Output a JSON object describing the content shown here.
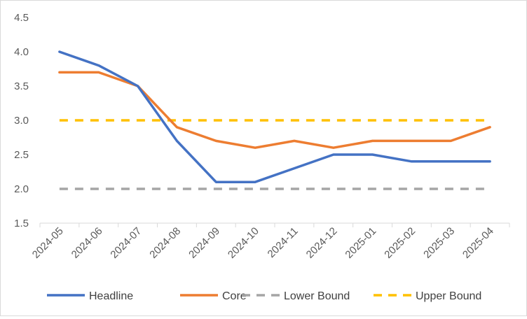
{
  "chart_data": {
    "type": "line",
    "title": "",
    "xlabel": "",
    "ylabel": "",
    "ylim": [
      1.5,
      4.5
    ],
    "ytick_step": 0.5,
    "grid": false,
    "legend_position": "bottom",
    "categories": [
      "2024-05",
      "2024-06",
      "2024-07",
      "2024-08",
      "2024-09",
      "2024-10",
      "2024-11",
      "2024-12",
      "2025-01",
      "2025-02",
      "2025-03",
      "2025-04"
    ],
    "series": [
      {
        "name": "Headline",
        "color": "#4472C4",
        "style": "solid",
        "values": [
          4.0,
          3.8,
          3.5,
          2.7,
          2.1,
          2.1,
          2.3,
          2.5,
          2.5,
          2.4,
          2.4,
          2.4
        ]
      },
      {
        "name": "Core",
        "color": "#ED7D31",
        "style": "solid",
        "values": [
          3.7,
          3.7,
          3.5,
          2.9,
          2.7,
          2.6,
          2.7,
          2.6,
          2.7,
          2.7,
          2.7,
          2.9
        ]
      },
      {
        "name": "Lower Bound",
        "color": "#A5A5A5",
        "style": "dashed",
        "values": [
          2.0,
          2.0,
          2.0,
          2.0,
          2.0,
          2.0,
          2.0,
          2.0,
          2.0,
          2.0,
          2.0,
          2.0
        ]
      },
      {
        "name": "Upper Bound",
        "color": "#FFC000",
        "style": "dashed",
        "values": [
          3.0,
          3.0,
          3.0,
          3.0,
          3.0,
          3.0,
          3.0,
          3.0,
          3.0,
          3.0,
          3.0,
          3.0
        ]
      }
    ]
  }
}
